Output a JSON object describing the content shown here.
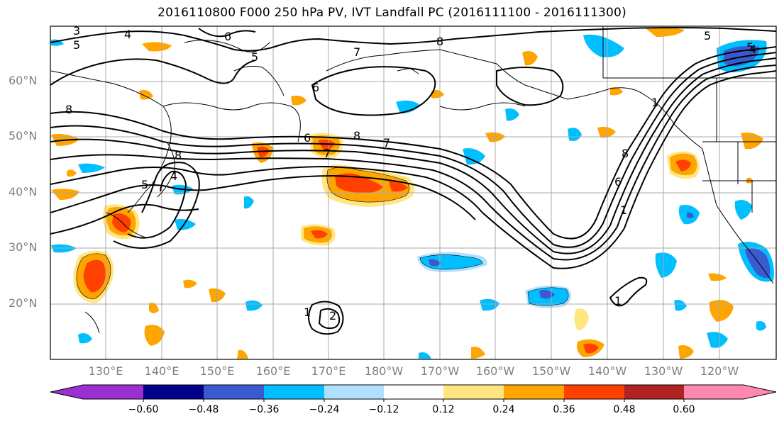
{
  "title": "2016110800 F000 250 hPa PV, IVT Landfall PC (2016111100 - 2016111300)",
  "lat_labels": [
    "60°N",
    "50°N",
    "40°N",
    "30°N",
    "20°N"
  ],
  "lon_labels": [
    "130°E",
    "140°E",
    "150°E",
    "160°E",
    "170°E",
    "180°W",
    "170°W",
    "160°W",
    "150°W",
    "140°W",
    "130°W",
    "120°W"
  ],
  "colorbar": {
    "ticks": [
      "−0.60",
      "−0.48",
      "−0.36",
      "−0.24",
      "−0.12",
      "0.12",
      "0.24",
      "0.36",
      "0.48",
      "0.60"
    ],
    "colors": [
      "#9b30d0",
      "#00008b",
      "#3a5bd0",
      "#00bfff",
      "#b0e0ff",
      "#ffffff",
      "#ffe680",
      "#ffa500",
      "#ff4000",
      "#b22222",
      "#ff88b0"
    ]
  },
  "contour_labels": [
    "3",
    "4",
    "5",
    "6",
    "7",
    "8",
    "5",
    "6",
    "7",
    "8",
    "6",
    "7",
    "8",
    "8",
    "5",
    "4",
    "5",
    "2",
    "1",
    "1",
    "6",
    "8",
    "1",
    "5",
    "4",
    "1"
  ]
}
